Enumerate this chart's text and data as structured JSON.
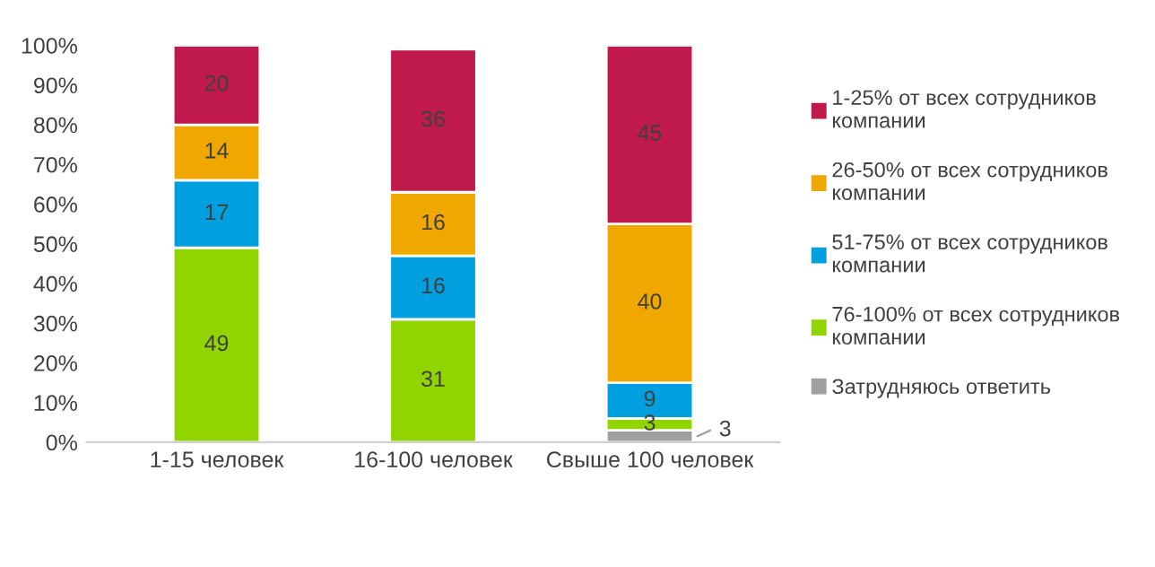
{
  "chart_data": {
    "type": "bar",
    "stacked": true,
    "categories": [
      "1-15 человек",
      "16-100 человек",
      "Свыше 100 человек"
    ],
    "series": [
      {
        "name": "Затрудняюсь ответить",
        "color": "#a0a0a0",
        "values": [
          null,
          null,
          3
        ]
      },
      {
        "name": "76-100% от всех сотрудников компании",
        "color": "#92d400",
        "values": [
          49,
          31,
          3
        ]
      },
      {
        "name": "51-75% от всех сотрудников компании",
        "color": "#00a0e0",
        "values": [
          17,
          16,
          9
        ]
      },
      {
        "name": "26-50% от всех сотрудников компании",
        "color": "#f0a800",
        "values": [
          14,
          16,
          40
        ]
      },
      {
        "name": "1-25% от всех сотрудников компании",
        "color": "#c0194c",
        "values": [
          20,
          36,
          45
        ]
      }
    ],
    "ylim": [
      0,
      100
    ],
    "yticks": [
      {
        "value": 0,
        "label": "0%"
      },
      {
        "value": 10,
        "label": "10%"
      },
      {
        "value": 20,
        "label": "20%"
      },
      {
        "value": 30,
        "label": "30%"
      },
      {
        "value": 40,
        "label": "40%"
      },
      {
        "value": 50,
        "label": "50%"
      },
      {
        "value": 60,
        "label": "60%"
      },
      {
        "value": 70,
        "label": "70%"
      },
      {
        "value": 80,
        "label": "80%"
      },
      {
        "value": 90,
        "label": "90%"
      },
      {
        "value": 100,
        "label": "100%"
      }
    ],
    "data_labels": true,
    "grid": false,
    "legend": "right"
  }
}
